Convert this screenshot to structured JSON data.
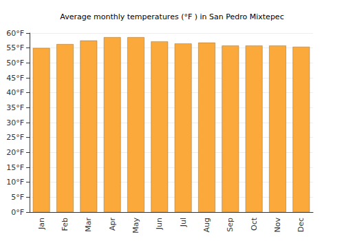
{
  "chart_data": {
    "type": "bar",
    "title": "Average monthly temperatures (°F ) in San Pedro Mixtepec",
    "categories": [
      "Jan",
      "Feb",
      "Mar",
      "Apr",
      "May",
      "Jun",
      "Jul",
      "Aug",
      "Sep",
      "Oct",
      "Nov",
      "Dec"
    ],
    "values": [
      55.0,
      56.3,
      57.5,
      58.6,
      58.6,
      57.2,
      56.5,
      56.8,
      55.8,
      55.8,
      55.8,
      55.4
    ],
    "color": "#fca93b",
    "ylim": [
      0,
      60
    ],
    "yticks": [
      {
        "value": 0,
        "label": "0°F"
      },
      {
        "value": 5,
        "label": "5°F"
      },
      {
        "value": 10,
        "label": "10°F"
      },
      {
        "value": 15,
        "label": "15°F"
      },
      {
        "value": 20,
        "label": "20°F"
      },
      {
        "value": 25,
        "label": "25°F"
      },
      {
        "value": 30,
        "label": "30°F"
      },
      {
        "value": 35,
        "label": "35°F"
      },
      {
        "value": 40,
        "label": "40°F"
      },
      {
        "value": 45,
        "label": "45°F"
      },
      {
        "value": 50,
        "label": "50°F"
      },
      {
        "value": 55,
        "label": "55°F"
      },
      {
        "value": 60,
        "label": "60°F"
      }
    ],
    "grid": true
  }
}
